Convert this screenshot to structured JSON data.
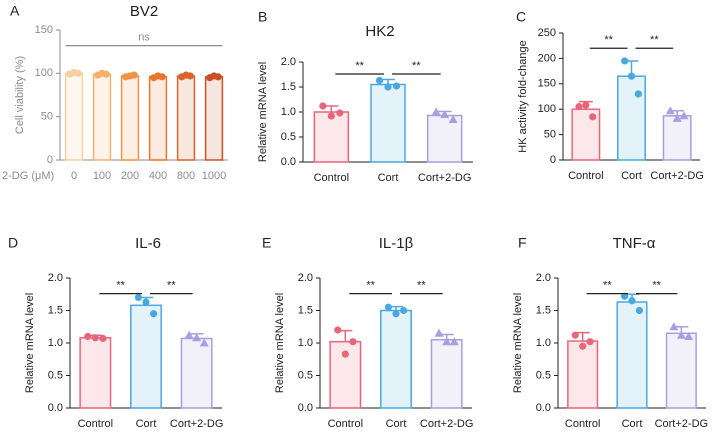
{
  "chart_data": [
    {
      "type": "bar",
      "panel": "A",
      "title": "BV2",
      "ylabel": "Cell viability (%)",
      "xlabel": "2-DG (μM)",
      "axis_color": "#8c8c8c",
      "categories": [
        "0",
        "100",
        "200",
        "400",
        "800",
        "1000"
      ],
      "values": [
        100,
        99,
        97,
        96,
        97,
        96
      ],
      "errors": [
        2,
        1,
        1,
        1,
        1,
        1
      ],
      "points": [
        [
          99,
          101,
          100
        ],
        [
          98,
          100,
          99
        ],
        [
          96,
          97,
          98
        ],
        [
          95,
          97,
          96
        ],
        [
          96,
          98,
          97
        ],
        [
          95,
          97,
          96
        ]
      ],
      "colors": [
        "#f8cfa0",
        "#f5b06c",
        "#f09344",
        "#e8772c",
        "#d9632a",
        "#c75226"
      ],
      "markers": [
        "circle",
        "circle",
        "circle",
        "circle",
        "circle",
        "circle"
      ],
      "ylim": [
        0,
        150
      ],
      "yticks": [
        0,
        50,
        100,
        150
      ],
      "comparisons": [
        {
          "between": [
            0,
            5
          ],
          "label": "ns"
        }
      ]
    },
    {
      "type": "bar",
      "panel": "B",
      "title": "HK2",
      "ylabel": "Relative mRNA level",
      "categories": [
        "Control",
        "Cort",
        "Cort+2-DG"
      ],
      "values": [
        1.0,
        1.55,
        0.93
      ],
      "errors": [
        0.12,
        0.1,
        0.08
      ],
      "points": [
        [
          1.12,
          0.92,
          0.98
        ],
        [
          1.63,
          1.5,
          1.52
        ],
        [
          1.0,
          0.95,
          0.85
        ]
      ],
      "colors": [
        "#e8667a",
        "#4aa8e0",
        "#a99ee0"
      ],
      "markers": [
        "circle",
        "circle",
        "triangle"
      ],
      "ylim": [
        0,
        2
      ],
      "yticks": [
        {
          "value": 0,
          "label": "0.0"
        },
        0.5,
        {
          "value": 1,
          "label": "1.0"
        },
        1.5,
        {
          "value": 2,
          "label": "2.0"
        }
      ],
      "comparisons": [
        {
          "between": [
            0,
            1
          ],
          "label": "**"
        },
        {
          "between": [
            1,
            2
          ],
          "label": "**"
        }
      ]
    },
    {
      "type": "bar",
      "panel": "C",
      "ylabel": "HK activity fold-change",
      "categories": [
        "Control",
        "Cort",
        "Cort+2-DG"
      ],
      "values": [
        100,
        165,
        87
      ],
      "errors": [
        15,
        30,
        10
      ],
      "points": [
        [
          105,
          108,
          85
        ],
        [
          195,
          165,
          130
        ],
        [
          97,
          82,
          87
        ]
      ],
      "colors": [
        "#e8667a",
        "#4aa8e0",
        "#a99ee0"
      ],
      "markers": [
        "circle",
        "circle",
        "triangle"
      ],
      "ylim": [
        0,
        250
      ],
      "yticks": [
        0,
        50,
        100,
        150,
        200,
        250
      ],
      "comparisons": [
        {
          "between": [
            0,
            1
          ],
          "label": "**"
        },
        {
          "between": [
            1,
            2
          ],
          "label": "**"
        }
      ]
    },
    {
      "type": "bar",
      "panel": "D",
      "title": "IL-6",
      "ylabel": "Relative mRNA level",
      "categories": [
        "Control",
        "Cort",
        "Cort+2-DG"
      ],
      "values": [
        1.08,
        1.58,
        1.07
      ],
      "errors": [
        0.04,
        0.12,
        0.07
      ],
      "points": [
        [
          1.1,
          1.08,
          1.07
        ],
        [
          1.7,
          1.63,
          1.45
        ],
        [
          1.12,
          1.08,
          1.0
        ]
      ],
      "colors": [
        "#e8667a",
        "#4aa8e0",
        "#a99ee0"
      ],
      "markers": [
        "circle",
        "circle",
        "triangle"
      ],
      "ylim": [
        0,
        2
      ],
      "yticks": [
        {
          "value": 0,
          "label": "0.0"
        },
        0.5,
        {
          "value": 1,
          "label": "1.0"
        },
        1.5,
        {
          "value": 2,
          "label": "2.0"
        }
      ],
      "comparisons": [
        {
          "between": [
            0,
            1
          ],
          "label": "**"
        },
        {
          "between": [
            1,
            2
          ],
          "label": "**"
        }
      ]
    },
    {
      "type": "bar",
      "panel": "E",
      "title": "IL-1β",
      "ylabel": "Relative mRNA level",
      "categories": [
        "Control",
        "Cort",
        "Cort+2-DG"
      ],
      "values": [
        1.02,
        1.5,
        1.05
      ],
      "errors": [
        0.17,
        0.06,
        0.08
      ],
      "points": [
        [
          1.2,
          0.83,
          1.02
        ],
        [
          1.55,
          1.45,
          1.5
        ],
        [
          1.15,
          1.02,
          1.02
        ]
      ],
      "colors": [
        "#e8667a",
        "#4aa8e0",
        "#a99ee0"
      ],
      "markers": [
        "circle",
        "circle",
        "triangle"
      ],
      "ylim": [
        0,
        2
      ],
      "yticks": [
        {
          "value": 0,
          "label": "0.0"
        },
        0.5,
        {
          "value": 1,
          "label": "1.0"
        },
        1.5,
        {
          "value": 2,
          "label": "2.0"
        }
      ],
      "comparisons": [
        {
          "between": [
            0,
            1
          ],
          "label": "**"
        },
        {
          "between": [
            1,
            2
          ],
          "label": "**"
        }
      ]
    },
    {
      "type": "bar",
      "panel": "F",
      "title": "TNF-α",
      "ylabel": "Relative mRNA level",
      "categories": [
        "Control",
        "Cort",
        "Cort+2-DG"
      ],
      "values": [
        1.03,
        1.63,
        1.15
      ],
      "errors": [
        0.13,
        0.12,
        0.1
      ],
      "points": [
        [
          1.12,
          0.95,
          1.02
        ],
        [
          1.72,
          1.65,
          1.5
        ],
        [
          1.25,
          1.12,
          1.1
        ]
      ],
      "colors": [
        "#e8667a",
        "#4aa8e0",
        "#a99ee0"
      ],
      "markers": [
        "circle",
        "circle",
        "triangle"
      ],
      "ylim": [
        0,
        2
      ],
      "yticks": [
        {
          "value": 0,
          "label": "0.0"
        },
        0.5,
        {
          "value": 1,
          "label": "1.0"
        },
        1.5,
        {
          "value": 2,
          "label": "2.0"
        }
      ],
      "comparisons": [
        {
          "between": [
            0,
            1
          ],
          "label": "**"
        },
        {
          "between": [
            1,
            2
          ],
          "label": "**"
        }
      ]
    }
  ]
}
